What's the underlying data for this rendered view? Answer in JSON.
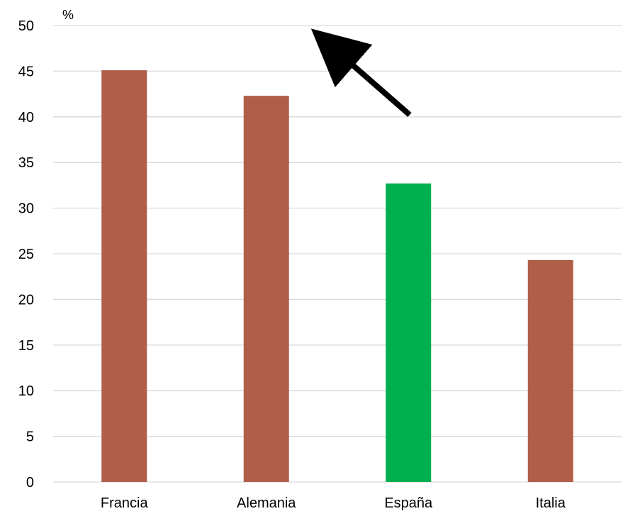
{
  "chart_data": {
    "type": "bar",
    "unit_label": "%",
    "categories": [
      "Francia",
      "Alemania",
      "España",
      "Italia"
    ],
    "values": [
      45.1,
      42.3,
      32.7,
      24.3
    ],
    "bar_colors": [
      "#b15e48",
      "#b15e48",
      "#00b050",
      "#b15e48"
    ],
    "ylim": [
      0,
      50
    ],
    "yticks": [
      0,
      5,
      10,
      15,
      20,
      25,
      30,
      35,
      40,
      45,
      50
    ],
    "grid": true,
    "legend": "none",
    "annotation": {
      "type": "arrow",
      "color": "#000000",
      "direction": "up-left"
    }
  }
}
